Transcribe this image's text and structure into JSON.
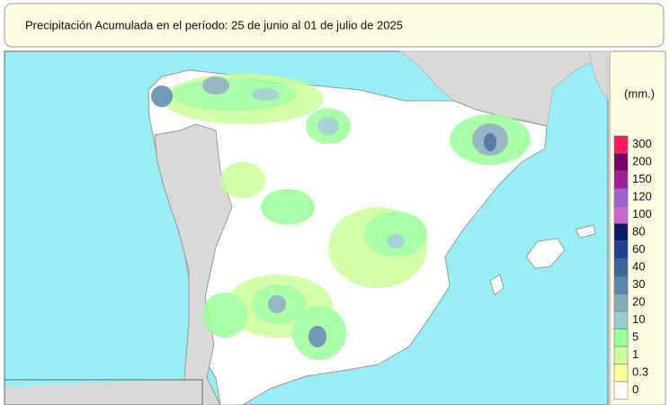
{
  "title": "Precipitación Acumulada en el período: 25  de junio  al 01  de julio de  2025",
  "legend": {
    "unit": "(mm.)",
    "items": [
      {
        "value": 300,
        "color": "#ff1a66"
      },
      {
        "value": 200,
        "color": "#7a0066"
      },
      {
        "value": 150,
        "color": "#a0209a"
      },
      {
        "value": 120,
        "color": "#a060d8"
      },
      {
        "value": 100,
        "color": "#cc66cc"
      },
      {
        "value": 80,
        "color": "#0a1a66"
      },
      {
        "value": 60,
        "color": "#1f3f99"
      },
      {
        "value": 40,
        "color": "#3a6699"
      },
      {
        "value": 30,
        "color": "#5a88aa"
      },
      {
        "value": 20,
        "color": "#88aabb"
      },
      {
        "value": 10,
        "color": "#99cccc"
      },
      {
        "value": 5,
        "color": "#99ff99"
      },
      {
        "value": 1,
        "color": "#ccff99"
      },
      {
        "value": 0.3,
        "color": "#ffff99"
      },
      {
        "value": 0,
        "color": "#ffffff"
      }
    ]
  }
}
